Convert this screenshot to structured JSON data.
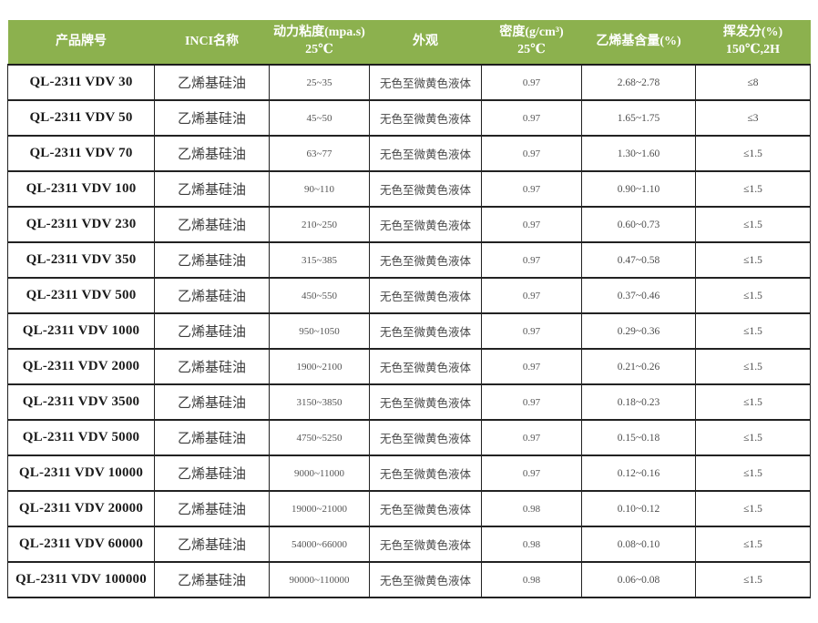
{
  "accent_color": "#8CB14E",
  "border_color": "#222222",
  "table": {
    "headers": [
      "产品牌号",
      "INCI名称",
      "动力粘度(mpa.s)\n25℃",
      "外观",
      "密度(g/cm³)\n25℃",
      "乙烯基含量(%)",
      "挥发分(%)\n150℃,2H"
    ],
    "rows": [
      [
        "QL-2311 VDV 30",
        "乙烯基硅油",
        "25~35",
        "无色至微黄色液体",
        "0.97",
        "2.68~2.78",
        "≤8"
      ],
      [
        "QL-2311 VDV 50",
        "乙烯基硅油",
        "45~50",
        "无色至微黄色液体",
        "0.97",
        "1.65~1.75",
        "≤3"
      ],
      [
        "QL-2311 VDV 70",
        "乙烯基硅油",
        "63~77",
        "无色至微黄色液体",
        "0.97",
        "1.30~1.60",
        "≤1.5"
      ],
      [
        "QL-2311 VDV 100",
        "乙烯基硅油",
        "90~110",
        "无色至微黄色液体",
        "0.97",
        "0.90~1.10",
        "≤1.5"
      ],
      [
        "QL-2311 VDV 230",
        "乙烯基硅油",
        "210~250",
        "无色至微黄色液体",
        "0.97",
        "0.60~0.73",
        "≤1.5"
      ],
      [
        "QL-2311 VDV 350",
        "乙烯基硅油",
        "315~385",
        "无色至微黄色液体",
        "0.97",
        "0.47~0.58",
        "≤1.5"
      ],
      [
        "QL-2311 VDV 500",
        "乙烯基硅油",
        "450~550",
        "无色至微黄色液体",
        "0.97",
        "0.37~0.46",
        "≤1.5"
      ],
      [
        "QL-2311 VDV 1000",
        "乙烯基硅油",
        "950~1050",
        "无色至微黄色液体",
        "0.97",
        "0.29~0.36",
        "≤1.5"
      ],
      [
        "QL-2311 VDV 2000",
        "乙烯基硅油",
        "1900~2100",
        "无色至微黄色液体",
        "0.97",
        "0.21~0.26",
        "≤1.5"
      ],
      [
        "QL-2311 VDV 3500",
        "乙烯基硅油",
        "3150~3850",
        "无色至微黄色液体",
        "0.97",
        "0.18~0.23",
        "≤1.5"
      ],
      [
        "QL-2311 VDV 5000",
        "乙烯基硅油",
        "4750~5250",
        "无色至微黄色液体",
        "0.97",
        "0.15~0.18",
        "≤1.5"
      ],
      [
        "QL-2311 VDV 10000",
        "乙烯基硅油",
        "9000~11000",
        "无色至微黄色液体",
        "0.97",
        "0.12~0.16",
        "≤1.5"
      ],
      [
        "QL-2311 VDV 20000",
        "乙烯基硅油",
        "19000~21000",
        "无色至微黄色液体",
        "0.98",
        "0.10~0.12",
        "≤1.5"
      ],
      [
        "QL-2311 VDV 60000",
        "乙烯基硅油",
        "54000~66000",
        "无色至微黄色液体",
        "0.98",
        "0.08~0.10",
        "≤1.5"
      ],
      [
        "QL-2311 VDV 100000",
        "乙烯基硅油",
        "90000~110000",
        "无色至微黄色液体",
        "0.98",
        "0.06~0.08",
        "≤1.5"
      ]
    ]
  }
}
